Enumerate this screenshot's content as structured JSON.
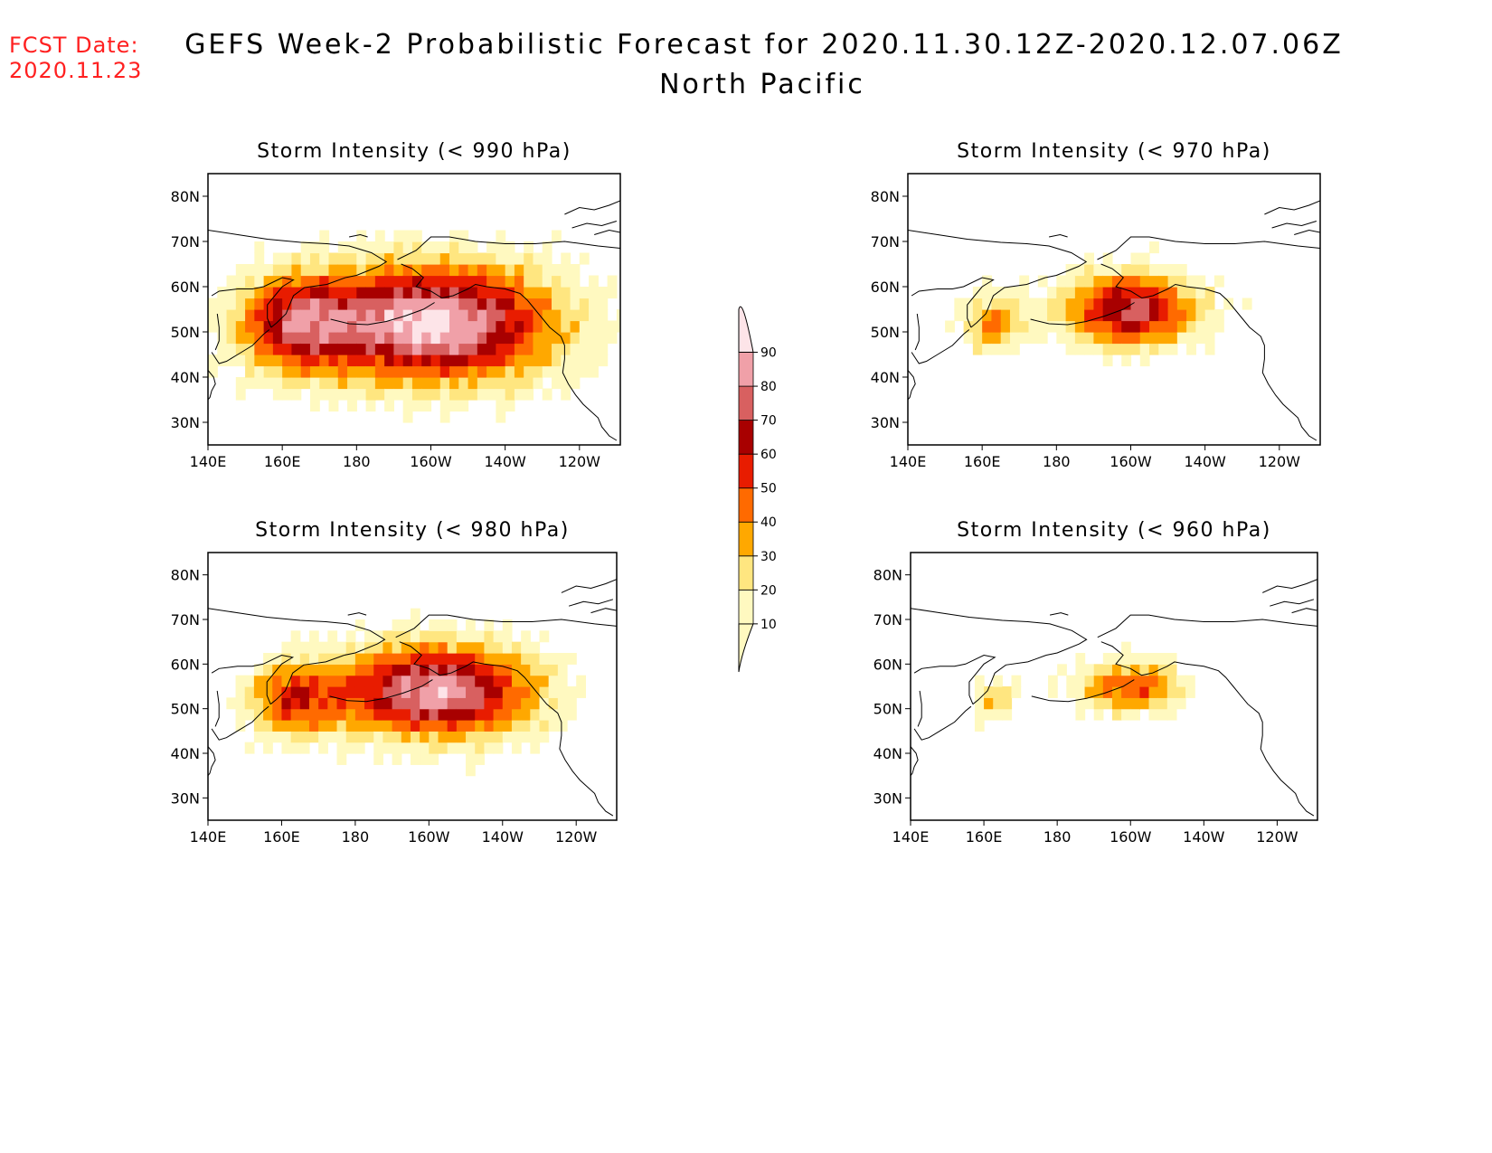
{
  "header": {
    "fcst_label": "FCST Date:",
    "fcst_date": "2020.11.23",
    "title": "GEFS Week-2 Probabilistic Forecast for 2020.11.30.12Z-2020.12.07.06Z",
    "subtitle": "North Pacific"
  },
  "colors": {
    "10": "#fff9c0",
    "20": "#ffe680",
    "30": "#ffa800",
    "40": "#ff6a00",
    "50": "#e81c00",
    "60": "#a80000",
    "70": "#d86060",
    "80": "#f0a0a8",
    "90": "#fde4e8"
  },
  "colorbar": {
    "levels": [
      "10",
      "20",
      "30",
      "40",
      "50",
      "60",
      "70",
      "80",
      "90"
    ]
  },
  "axes": {
    "lon_labels": [
      "140E",
      "160E",
      "180",
      "160W",
      "140W",
      "120W"
    ],
    "lat_labels": [
      "80N",
      "70N",
      "60N",
      "50N",
      "40N",
      "30N"
    ]
  },
  "panels": [
    {
      "title": "Storm Intensity (< 990 hPa)",
      "threshold_hpa": 990,
      "field": {
        "core_lon": -160,
        "core_lat": 52,
        "max_prob": 95,
        "extent": "broad"
      }
    },
    {
      "title": "Storm Intensity (< 970 hPa)",
      "threshold_hpa": 970,
      "field": {
        "core_lon": -160,
        "core_lat": 55,
        "max_prob": 75,
        "extent": "moderate"
      }
    },
    {
      "title": "Storm Intensity (< 980 hPa)",
      "threshold_hpa": 980,
      "field": {
        "core_lon": -158,
        "core_lat": 54,
        "max_prob": 88,
        "extent": "wide"
      }
    },
    {
      "title": "Storm Intensity (< 960 hPa)",
      "threshold_hpa": 960,
      "field": {
        "core_lon": -160,
        "core_lat": 55,
        "max_prob": 50,
        "extent": "narrow"
      }
    }
  ]
}
